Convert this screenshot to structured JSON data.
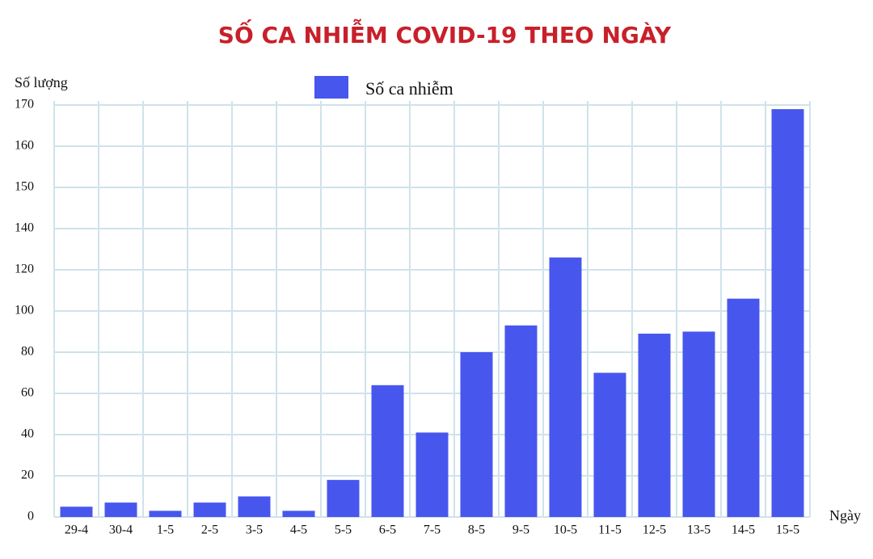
{
  "chart_data": {
    "type": "bar",
    "title": "SỐ CA NHIỄM COVID-19 THEO NGÀY",
    "y_label": "Số lượng",
    "x_label": "Ngày",
    "categories": [
      "29-4",
      "30-4",
      "1-5",
      "2-5",
      "3-5",
      "4-5",
      "5-5",
      "6-5",
      "7-5",
      "8-5",
      "9-5",
      "10-5",
      "11-5",
      "12-5",
      "13-5",
      "14-5",
      "15-5"
    ],
    "series": [
      {
        "name": "Số ca nhiễm",
        "color": "#4757ee",
        "values": [
          5,
          7,
          3,
          7,
          10,
          3,
          18,
          64,
          41,
          80,
          93,
          126,
          70,
          89,
          90,
          106,
          169
        ]
      }
    ],
    "ylim": [
      0,
      170
    ],
    "yticks": [
      0,
      20,
      40,
      60,
      80,
      100,
      120,
      140,
      150,
      160,
      170
    ],
    "grid": true
  }
}
